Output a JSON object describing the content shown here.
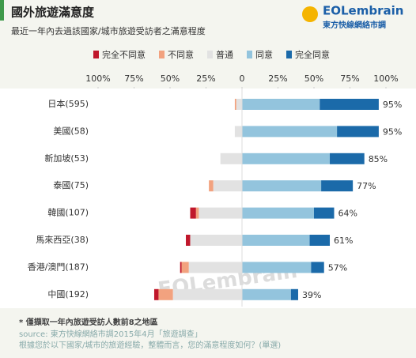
{
  "chart_data": {
    "type": "diverging-bar",
    "title": "國外旅遊滿意度",
    "subtitle": "最近一年內去過該國家/城市旅遊受訪者之滿意程度",
    "logo": "EOLembrain",
    "logo_subtitle": "東方快線網絡市調",
    "watermark": "EOLembrain",
    "categories": [
      "日本(595)",
      "美國(58)",
      "新加坡(53)",
      "泰國(75)",
      "韓國(107)",
      "馬來西亞(38)",
      "香港/澳門(187)",
      "中國(192)"
    ],
    "series": [
      {
        "name": "完全不同意",
        "color": "#c0172b",
        "values": [
          0,
          0,
          0,
          0,
          4,
          3,
          1,
          3
        ]
      },
      {
        "name": "不同意",
        "color": "#f2a27f",
        "values": [
          1,
          0,
          0,
          3,
          2,
          0,
          5,
          10
        ]
      },
      {
        "name": "普通",
        "color": "#e2e2e2",
        "values": [
          4,
          5,
          15,
          20,
          30,
          36,
          37,
          48
        ]
      },
      {
        "name": "同意",
        "color": "#93c4dd",
        "values": [
          54,
          66,
          61,
          55,
          50,
          47,
          48,
          34
        ]
      },
      {
        "name": "完全同意",
        "color": "#1b6aa9",
        "values": [
          41,
          29,
          24,
          22,
          14,
          14,
          9,
          5
        ]
      }
    ],
    "totals": {
      "values": [
        95,
        95,
        85,
        77,
        64,
        61,
        57,
        39
      ],
      "value_labels": [
        "95%",
        "95%",
        "85%",
        "77%",
        "64%",
        "61%",
        "57%",
        "39%"
      ]
    },
    "xlim": [
      -100,
      100
    ],
    "xticks": [
      {
        "value": -100,
        "label": "100%"
      },
      {
        "value": -75,
        "label": "75%"
      },
      {
        "value": -50,
        "label": "50%"
      },
      {
        "value": -25,
        "label": "25%"
      },
      0,
      {
        "value": 25,
        "label": "25%"
      },
      {
        "value": 50,
        "label": "50%"
      },
      {
        "value": 75,
        "label": "75%"
      },
      {
        "value": 100,
        "label": "100%"
      }
    ],
    "notes": [
      "* 僅擷取一年內旅遊受訪人數前8之地區",
      "source: 東方快線網絡市調2015年4月「旅遊調查」",
      "根據您於以下國家/城市的旅遊經驗，整體而言，您的滿意程度如何？(單選)"
    ]
  }
}
